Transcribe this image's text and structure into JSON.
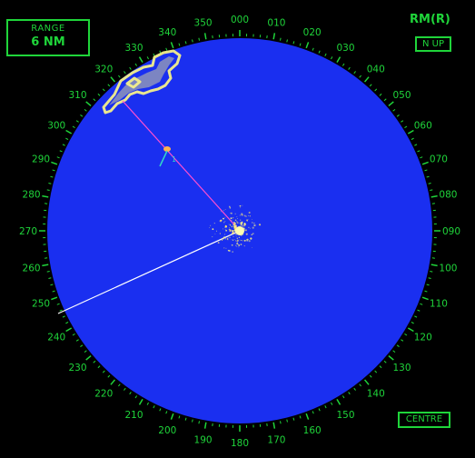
{
  "range": {
    "label": "RANGE",
    "value": "6 NM"
  },
  "display_mode": "RM(R)",
  "orientation_button": "N UP",
  "centre_button": "CENTRE",
  "bearing_scale_labels": [
    "000",
    "010",
    "020",
    "030",
    "040",
    "050",
    "060",
    "070",
    "080",
    "090",
    "100",
    "110",
    "120",
    "130",
    "140",
    "150",
    "160",
    "170",
    "180",
    "190",
    "200",
    "210",
    "220",
    "230",
    "240",
    "250",
    "260",
    "270",
    "280",
    "290",
    "300",
    "310",
    "320",
    "330",
    "340",
    "350"
  ],
  "target_label": "1",
  "colors": {
    "background": "#000000",
    "radar_sea": "#1a2ff0",
    "scale_green": "#1fd53a",
    "echo_yellow": "#f4f08a",
    "bearing_line": "#ff4fd0",
    "heading_line": "#ffffff",
    "target_vector": "#33d7c8"
  }
}
